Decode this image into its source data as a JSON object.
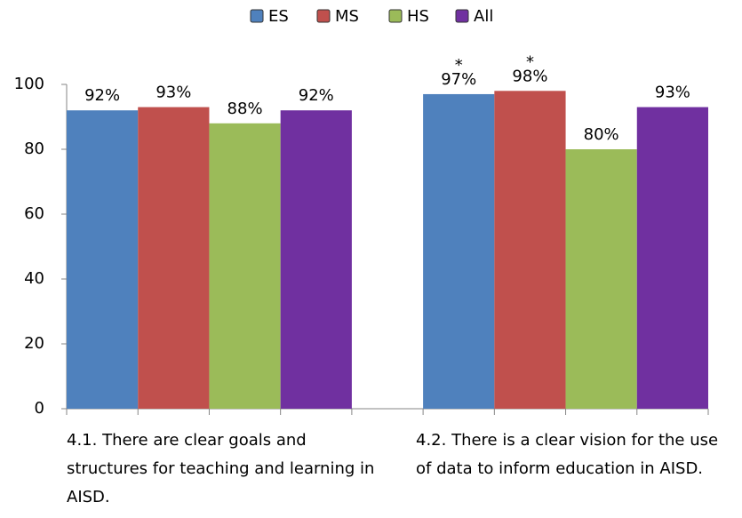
{
  "chart_data": {
    "type": "bar",
    "categories": [
      "4.1. There are clear goals and structures for teaching and learning in AISD.",
      "4.2. There is a clear vision for the use of data to inform education in AISD."
    ],
    "series": [
      {
        "name": "ES",
        "color": "#4f81bd",
        "values": [
          92,
          97
        ],
        "value_labels": [
          "92%",
          "97%"
        ],
        "notes": [
          null,
          "*"
        ]
      },
      {
        "name": "MS",
        "color": "#c0504d",
        "values": [
          93,
          98
        ],
        "value_labels": [
          "93%",
          "98%"
        ],
        "notes": [
          null,
          "*"
        ]
      },
      {
        "name": "HS",
        "color": "#9bbb59",
        "values": [
          88,
          80
        ],
        "value_labels": [
          "88%",
          "80%"
        ]
      },
      {
        "name": "All",
        "color": "#7030a0",
        "values": [
          92,
          93
        ],
        "value_labels": [
          "92%",
          "93%"
        ]
      }
    ],
    "ylim": [
      0,
      100
    ],
    "yticks": [
      0,
      20,
      40,
      60,
      80,
      100
    ],
    "grid": false,
    "legend": "top"
  }
}
